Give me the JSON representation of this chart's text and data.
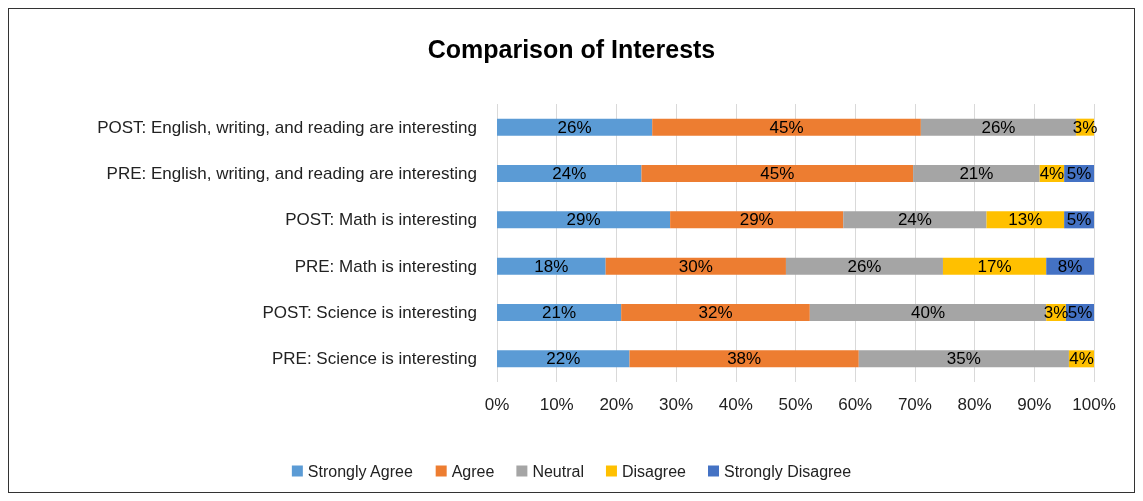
{
  "chart_data": {
    "type": "bar",
    "orientation": "horizontal",
    "stacked": true,
    "title": "Comparison of Interests",
    "categories": [
      "POST: English, writing, and reading are interesting",
      "PRE: English, writing, and reading are interesting",
      "POST: Math is interesting",
      "PRE: Math is interesting",
      "POST: Science is interesting",
      "PRE: Science is interesting"
    ],
    "series": [
      {
        "name": "Strongly Agree",
        "color": "#5b9bd5",
        "values": [
          26,
          24.2,
          29,
          18.2,
          20.8,
          22.2
        ],
        "value_labels": [
          "26%",
          "24%",
          "29%",
          "18%",
          "21%",
          "22%"
        ]
      },
      {
        "name": "Agree",
        "color": "#ed7d31",
        "values": [
          45,
          45.5,
          29,
          30.2,
          31.6,
          38.4
        ],
        "value_labels": [
          "45%",
          "45%",
          "29%",
          "30%",
          "32%",
          "38%"
        ]
      },
      {
        "name": "Neutral",
        "color": "#a5a5a5",
        "values": [
          26,
          21.2,
          24,
          26.3,
          39.6,
          35.2
        ],
        "value_labels": [
          "26%",
          "21%",
          "24%",
          "26%",
          "40%",
          "35%"
        ]
      },
      {
        "name": "Disagree",
        "color": "#ffc000",
        "values": [
          3,
          4.1,
          13,
          17.3,
          3.3,
          4.2
        ],
        "value_labels": [
          "3%",
          "4%",
          "13%",
          "17%",
          "3%",
          "4%"
        ]
      },
      {
        "name": "Strongly Disagree",
        "color": "#4472c4",
        "values": [
          0,
          5,
          5,
          8,
          4.7,
          0
        ],
        "value_labels": [
          null,
          "5%",
          "5%",
          "8%",
          "5%",
          null
        ]
      }
    ],
    "xlim": [
      0,
      100
    ],
    "xticks": [
      {
        "value": 0,
        "label": "0%"
      },
      {
        "value": 10,
        "label": "10%"
      },
      {
        "value": 20,
        "label": "20%"
      },
      {
        "value": 30,
        "label": "30%"
      },
      {
        "value": 40,
        "label": "40%"
      },
      {
        "value": 50,
        "label": "50%"
      },
      {
        "value": 60,
        "label": "60%"
      },
      {
        "value": 70,
        "label": "70%"
      },
      {
        "value": 80,
        "label": "80%"
      },
      {
        "value": 90,
        "label": "90%"
      },
      {
        "value": 100,
        "label": "100%"
      }
    ],
    "grid": "x",
    "legend": "bottom"
  }
}
